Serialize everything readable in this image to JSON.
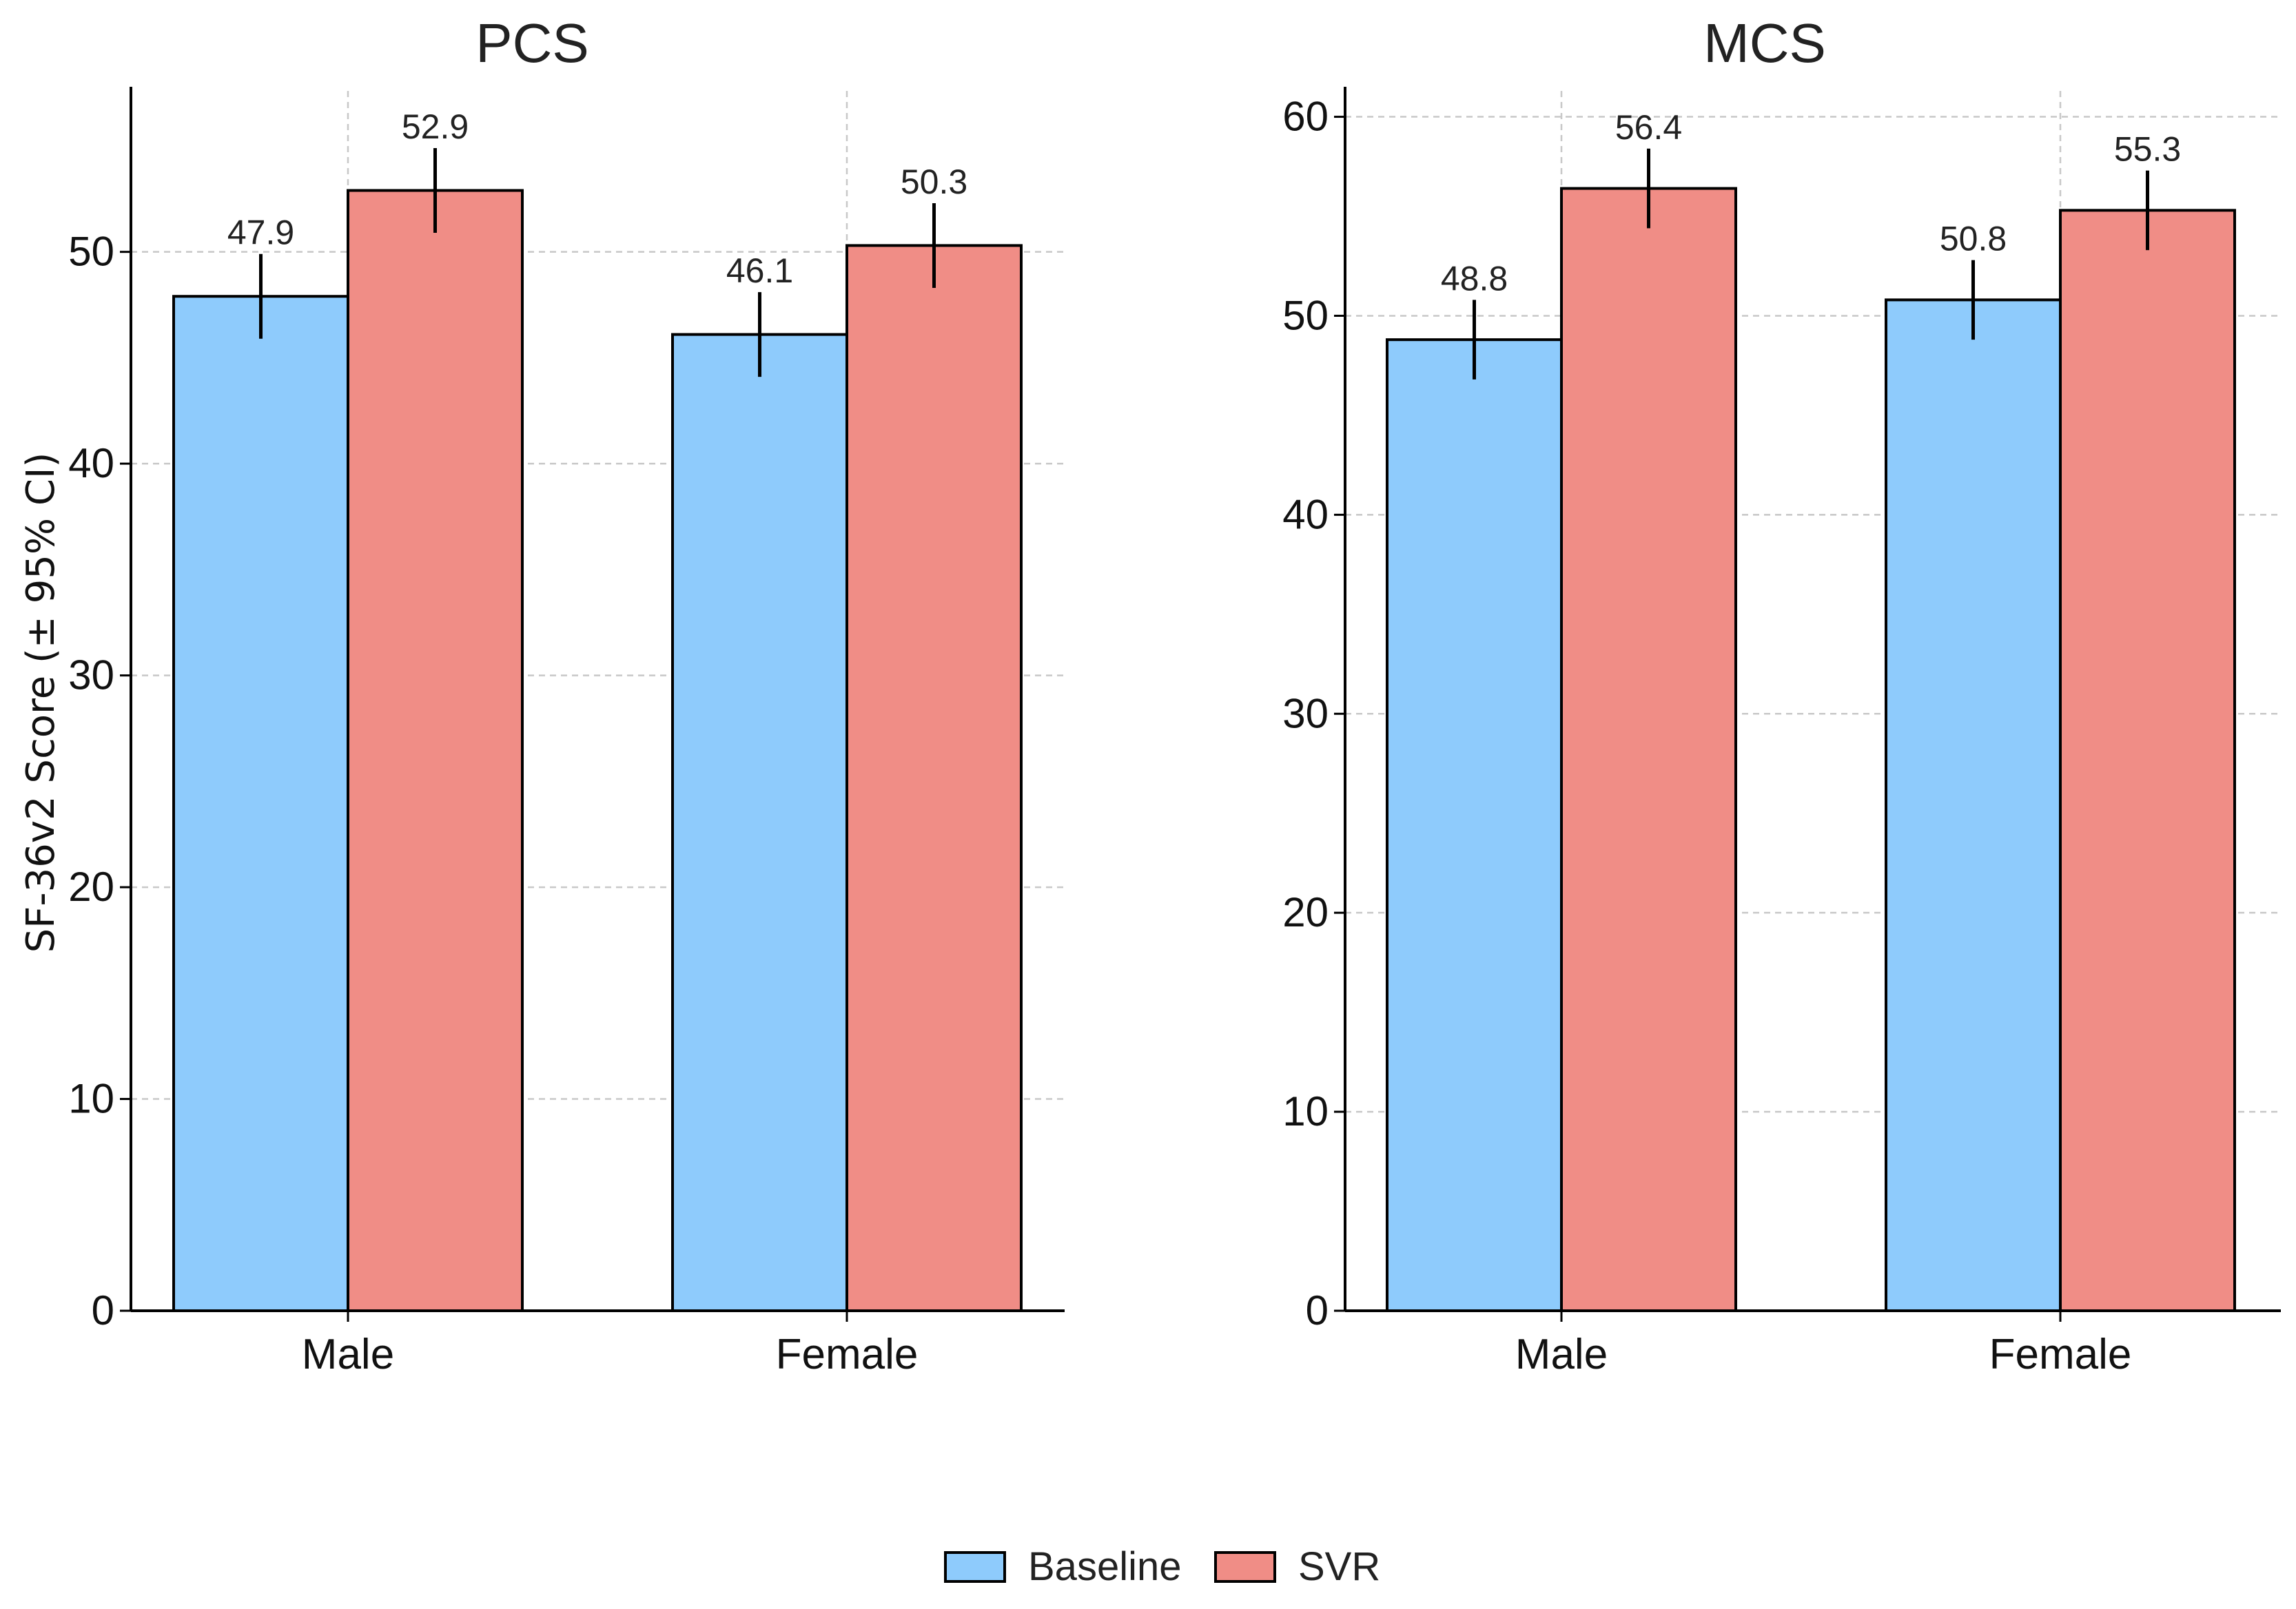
{
  "ylabel": "SF-36v2 Score (± 95% CI)",
  "legend": {
    "position": "bottom-center",
    "items": [
      {
        "label": "Baseline",
        "color": "#8ecbfc"
      },
      {
        "label": "SVR",
        "color": "#f08d86"
      }
    ]
  },
  "colors": {
    "baseline": "#8ecbfc",
    "svr": "#f08d86",
    "edge": "#000000",
    "grid": "#c8c8c8"
  },
  "chart_data": [
    {
      "type": "bar",
      "title": "PCS",
      "categories": [
        "Male",
        "Female"
      ],
      "series": [
        {
          "name": "Baseline",
          "values": [
            47.9,
            46.1
          ],
          "ci_low": [
            45.9,
            44.1
          ],
          "ci_high": [
            49.9,
            48.1
          ]
        },
        {
          "name": "SVR",
          "values": [
            52.9,
            50.3
          ],
          "ci_low": [
            50.9,
            48.3
          ],
          "ci_high": [
            54.9,
            52.3
          ]
        }
      ],
      "value_labels": [
        [
          "47.9",
          "46.1"
        ],
        [
          "52.9",
          "50.3"
        ]
      ],
      "yticks": [
        0,
        10,
        20,
        30,
        40,
        50
      ],
      "ytick_labels": [
        "0",
        "10",
        "20",
        "30",
        "40",
        "50"
      ],
      "ylim": [
        0,
        57.6
      ],
      "grid": true
    },
    {
      "type": "bar",
      "title": "MCS",
      "categories": [
        "Male",
        "Female"
      ],
      "series": [
        {
          "name": "Baseline",
          "values": [
            48.8,
            50.8
          ],
          "ci_low": [
            46.8,
            48.8
          ],
          "ci_high": [
            50.8,
            52.8
          ]
        },
        {
          "name": "SVR",
          "values": [
            56.4,
            55.3
          ],
          "ci_low": [
            54.4,
            53.3
          ],
          "ci_high": [
            58.4,
            57.3
          ]
        }
      ],
      "value_labels": [
        [
          "48.8",
          "50.8"
        ],
        [
          "56.4",
          "55.3"
        ]
      ],
      "yticks": [
        0,
        10,
        20,
        30,
        40,
        50,
        60
      ],
      "ytick_labels": [
        "0",
        "10",
        "20",
        "30",
        "40",
        "50",
        "60"
      ],
      "ylim": [
        0,
        61.3
      ],
      "grid": true
    }
  ]
}
